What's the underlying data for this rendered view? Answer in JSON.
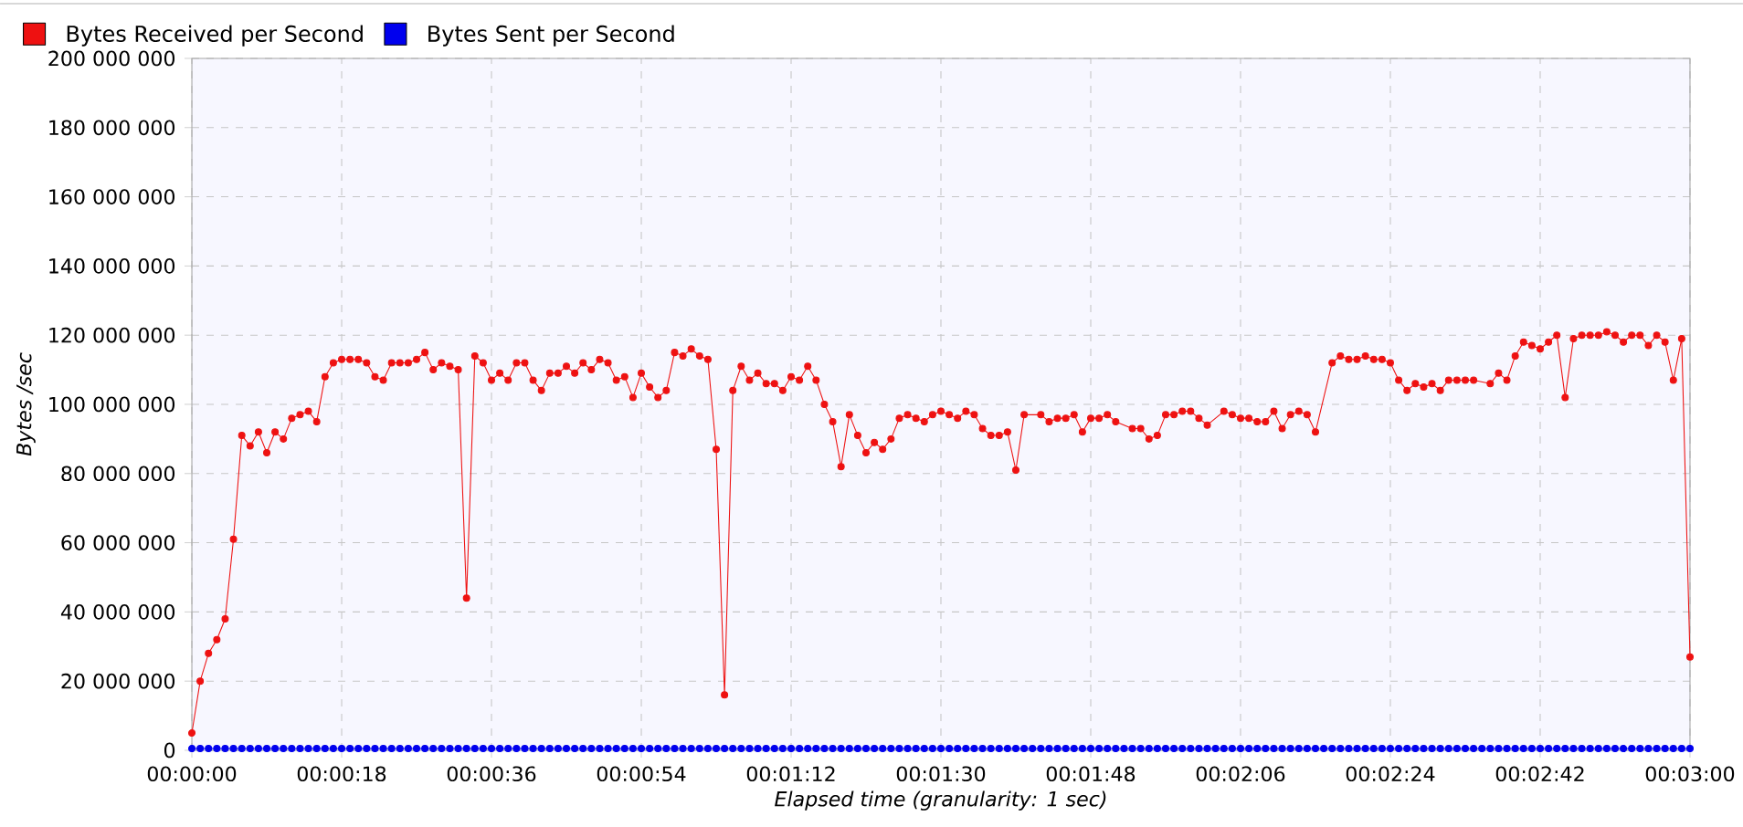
{
  "chart_data": {
    "type": "line",
    "xlabel": "Elapsed time (granularity: 1 sec)",
    "ylabel": "Bytes /sec",
    "xlim": [
      0,
      180
    ],
    "ylim": [
      0,
      200000000
    ],
    "xticks": [
      {
        "value": 0,
        "label": "00:00:00"
      },
      {
        "value": 18,
        "label": "00:00:18"
      },
      {
        "value": 36,
        "label": "00:00:36"
      },
      {
        "value": 54,
        "label": "00:00:54"
      },
      {
        "value": 72,
        "label": "00:01:12"
      },
      {
        "value": 90,
        "label": "00:01:30"
      },
      {
        "value": 108,
        "label": "00:01:48"
      },
      {
        "value": 126,
        "label": "00:02:06"
      },
      {
        "value": 144,
        "label": "00:02:24"
      },
      {
        "value": 162,
        "label": "00:02:42"
      },
      {
        "value": 180,
        "label": "00:03:00"
      }
    ],
    "yticks": [
      0,
      {
        "value": 20000000,
        "label": "20 000 000"
      },
      {
        "value": 40000000,
        "label": "40 000 000"
      },
      {
        "value": 60000000,
        "label": "60 000 000"
      },
      {
        "value": 80000000,
        "label": "80 000 000"
      },
      {
        "value": 100000000,
        "label": "100 000 000"
      },
      {
        "value": 120000000,
        "label": "120 000 000"
      },
      {
        "value": 140000000,
        "label": "140 000 000"
      },
      {
        "value": 160000000,
        "label": "160 000 000"
      },
      {
        "value": 180000000,
        "label": "180 000 000"
      },
      {
        "value": 200000000,
        "label": "200 000 000"
      }
    ],
    "grid": true,
    "legend": "top left",
    "marker": "circle",
    "line_style": "solid",
    "series": [
      {
        "name": "Bytes Received per Second",
        "color": "#ee1111",
        "x": [
          0,
          1,
          2,
          3,
          4,
          5,
          6,
          7,
          8,
          9,
          10,
          11,
          12,
          13,
          14,
          15,
          16,
          17,
          18,
          19,
          20,
          21,
          22,
          23,
          24,
          25,
          26,
          27,
          28,
          29,
          30,
          31,
          32,
          33,
          34,
          35,
          36,
          37,
          38,
          39,
          40,
          41,
          42,
          43,
          44,
          45,
          46,
          47,
          48,
          49,
          50,
          51,
          52,
          53,
          54,
          55,
          56,
          57,
          58,
          59,
          60,
          61,
          62,
          63,
          64,
          65,
          66,
          67,
          68,
          69,
          70,
          71,
          72,
          73,
          74,
          75,
          76,
          77,
          78,
          79,
          80,
          81,
          82,
          83,
          84,
          85,
          86,
          87,
          88,
          89,
          90,
          91,
          92,
          93,
          94,
          95,
          96,
          97,
          98,
          99,
          100,
          102,
          103,
          104,
          105,
          106,
          107,
          108,
          109,
          110,
          111,
          113,
          114,
          115,
          116,
          117,
          118,
          119,
          120,
          121,
          122,
          124,
          125,
          126,
          127,
          128,
          129,
          130,
          131,
          132,
          133,
          134,
          135,
          137,
          138,
          139,
          140,
          141,
          142,
          143,
          144,
          145,
          146,
          147,
          148,
          149,
          150,
          151,
          152,
          153,
          154,
          156,
          157,
          158,
          159,
          160,
          161,
          162,
          163,
          164,
          165,
          166,
          167,
          168,
          169,
          170,
          171,
          172,
          173,
          174,
          175,
          176,
          177,
          178,
          179,
          180
        ],
        "values": [
          5000000,
          20000000,
          28000000,
          32000000,
          38000000,
          61000000,
          91000000,
          88000000,
          92000000,
          86000000,
          92000000,
          90000000,
          96000000,
          97000000,
          98000000,
          95000000,
          108000000,
          112000000,
          113000000,
          113000000,
          113000000,
          112000000,
          108000000,
          107000000,
          112000000,
          112000000,
          112000000,
          113000000,
          115000000,
          110000000,
          112000000,
          111000000,
          110000000,
          44000000,
          114000000,
          112000000,
          107000000,
          109000000,
          107000000,
          112000000,
          112000000,
          107000000,
          104000000,
          109000000,
          109000000,
          111000000,
          109000000,
          112000000,
          110000000,
          113000000,
          112000000,
          107000000,
          108000000,
          102000000,
          109000000,
          105000000,
          102000000,
          104000000,
          115000000,
          114000000,
          116000000,
          114000000,
          113000000,
          87000000,
          16000000,
          104000000,
          111000000,
          107000000,
          109000000,
          106000000,
          106000000,
          104000000,
          108000000,
          107000000,
          111000000,
          107000000,
          100000000,
          95000000,
          82000000,
          97000000,
          91000000,
          86000000,
          89000000,
          87000000,
          90000000,
          96000000,
          97000000,
          96000000,
          95000000,
          97000000,
          98000000,
          97000000,
          96000000,
          98000000,
          97000000,
          93000000,
          91000000,
          91000000,
          92000000,
          81000000,
          97000000,
          97000000,
          95000000,
          96000000,
          96000000,
          97000000,
          92000000,
          96000000,
          96000000,
          97000000,
          95000000,
          93000000,
          93000000,
          90000000,
          91000000,
          97000000,
          97000000,
          98000000,
          98000000,
          96000000,
          94000000,
          98000000,
          97000000,
          96000000,
          96000000,
          95000000,
          95000000,
          98000000,
          93000000,
          97000000,
          98000000,
          97000000,
          92000000,
          112000000,
          114000000,
          113000000,
          113000000,
          114000000,
          113000000,
          113000000,
          112000000,
          107000000,
          104000000,
          106000000,
          105000000,
          106000000,
          104000000,
          107000000,
          107000000,
          107000000,
          107000000,
          106000000,
          109000000,
          107000000,
          114000000,
          118000000,
          117000000,
          116000000,
          118000000,
          120000000,
          102000000,
          119000000,
          120000000,
          120000000,
          120000000,
          121000000,
          120000000,
          118000000,
          120000000,
          120000000,
          117000000,
          120000000,
          118000000,
          107000000,
          119000000,
          27000000
        ]
      },
      {
        "name": "Bytes Sent per Second",
        "color": "#0000ee",
        "x": [
          0,
          1,
          2,
          3,
          4,
          5,
          6,
          7,
          8,
          9,
          10,
          11,
          12,
          13,
          14,
          15,
          16,
          17,
          18,
          19,
          20,
          21,
          22,
          23,
          24,
          25,
          26,
          27,
          28,
          29,
          30,
          31,
          32,
          33,
          34,
          35,
          36,
          37,
          38,
          39,
          40,
          41,
          42,
          43,
          44,
          45,
          46,
          47,
          48,
          49,
          50,
          51,
          52,
          53,
          54,
          55,
          56,
          57,
          58,
          59,
          60,
          61,
          62,
          63,
          64,
          65,
          66,
          67,
          68,
          69,
          70,
          71,
          72,
          73,
          74,
          75,
          76,
          77,
          78,
          79,
          80,
          81,
          82,
          83,
          84,
          85,
          86,
          87,
          88,
          89,
          90,
          91,
          92,
          93,
          94,
          95,
          96,
          97,
          98,
          99,
          100,
          101,
          102,
          103,
          104,
          105,
          106,
          107,
          108,
          109,
          110,
          111,
          112,
          113,
          114,
          115,
          116,
          117,
          118,
          119,
          120,
          121,
          122,
          123,
          124,
          125,
          126,
          127,
          128,
          129,
          130,
          131,
          132,
          133,
          134,
          135,
          136,
          137,
          138,
          139,
          140,
          141,
          142,
          143,
          144,
          145,
          146,
          147,
          148,
          149,
          150,
          151,
          152,
          153,
          154,
          155,
          156,
          157,
          158,
          159,
          160,
          161,
          162,
          163,
          164,
          165,
          166,
          167,
          168,
          169,
          170,
          171,
          172,
          173,
          174,
          175,
          176,
          177,
          178,
          179,
          180
        ],
        "values": [
          500000,
          500000,
          500000,
          500000,
          500000,
          500000,
          500000,
          500000,
          500000,
          500000,
          500000,
          500000,
          500000,
          500000,
          500000,
          500000,
          500000,
          500000,
          500000,
          500000,
          500000,
          500000,
          500000,
          500000,
          500000,
          500000,
          500000,
          500000,
          500000,
          500000,
          500000,
          500000,
          500000,
          500000,
          500000,
          500000,
          500000,
          500000,
          500000,
          500000,
          500000,
          500000,
          500000,
          500000,
          500000,
          500000,
          500000,
          500000,
          500000,
          500000,
          500000,
          500000,
          500000,
          500000,
          500000,
          500000,
          500000,
          500000,
          500000,
          500000,
          500000,
          500000,
          500000,
          500000,
          500000,
          500000,
          500000,
          500000,
          500000,
          500000,
          500000,
          500000,
          500000,
          500000,
          500000,
          500000,
          500000,
          500000,
          500000,
          500000,
          500000,
          500000,
          500000,
          500000,
          500000,
          500000,
          500000,
          500000,
          500000,
          500000,
          500000,
          500000,
          500000,
          500000,
          500000,
          500000,
          500000,
          500000,
          500000,
          500000,
          500000,
          500000,
          500000,
          500000,
          500000,
          500000,
          500000,
          500000,
          500000,
          500000,
          500000,
          500000,
          500000,
          500000,
          500000,
          500000,
          500000,
          500000,
          500000,
          500000,
          500000,
          500000,
          500000,
          500000,
          500000,
          500000,
          500000,
          500000,
          500000,
          500000,
          500000,
          500000,
          500000,
          500000,
          500000,
          500000,
          500000,
          500000,
          500000,
          500000,
          500000,
          500000,
          500000,
          500000,
          500000,
          500000,
          500000,
          500000,
          500000,
          500000,
          500000,
          500000,
          500000,
          500000,
          500000,
          500000,
          500000,
          500000,
          500000,
          500000,
          500000,
          500000,
          500000,
          500000,
          500000,
          500000,
          500000,
          500000,
          500000,
          500000,
          500000,
          500000,
          500000,
          500000,
          500000,
          500000,
          500000,
          500000,
          500000,
          500000,
          500000
        ]
      }
    ]
  }
}
